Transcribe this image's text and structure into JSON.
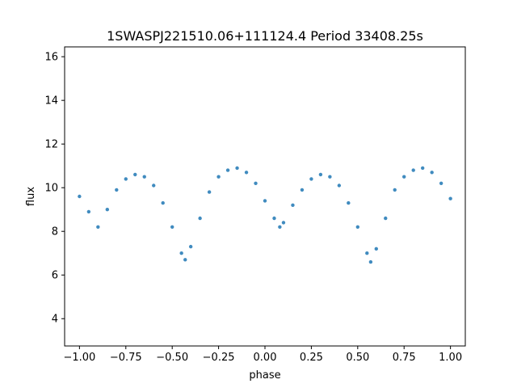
{
  "chart_data": {
    "type": "scatter",
    "title": "1SWASPJ221510.06+111124.4 Period 33408.25s",
    "xlabel": "phase",
    "ylabel": "flux",
    "xlim": [
      -1.08,
      1.08
    ],
    "ylim": [
      2.75,
      16.45
    ],
    "x_ticks": [
      -1.0,
      -0.75,
      -0.5,
      -0.25,
      0.0,
      0.25,
      0.5,
      0.75,
      1.0
    ],
    "x_tick_labels": [
      "−1.00",
      "−0.75",
      "−0.50",
      "−0.25",
      "0.00",
      "0.25",
      "0.50",
      "0.75",
      "1.00"
    ],
    "y_ticks": [
      4,
      6,
      8,
      10,
      12,
      14,
      16
    ],
    "y_tick_labels": [
      "4",
      "6",
      "8",
      "10",
      "12",
      "14",
      "16"
    ],
    "grid": false,
    "marker_color": "#1f77b4",
    "series": [
      {
        "x": [
          -1.0,
          -0.95,
          -0.9,
          -0.85,
          -0.8,
          -0.75,
          -0.7,
          -0.65,
          -0.6,
          -0.55,
          -0.5,
          -0.45,
          -0.43,
          -0.4,
          -0.35,
          -0.3,
          -0.25,
          -0.2,
          -0.15,
          -0.1,
          -0.05,
          0.0,
          0.05,
          0.08,
          0.1,
          0.15,
          0.2,
          0.25,
          0.3,
          0.35,
          0.4,
          0.45,
          0.5,
          0.55,
          0.57,
          0.6,
          0.65,
          0.7,
          0.75,
          0.8,
          0.85,
          0.9,
          0.95,
          1.0
        ],
        "y": [
          9.6,
          8.9,
          8.2,
          9.0,
          9.9,
          10.4,
          10.6,
          10.5,
          10.1,
          9.3,
          8.2,
          7.0,
          6.7,
          7.3,
          8.6,
          9.8,
          10.5,
          10.8,
          10.9,
          10.7,
          10.2,
          9.4,
          8.6,
          8.2,
          8.4,
          9.2,
          9.9,
          10.4,
          10.6,
          10.5,
          10.1,
          9.3,
          8.2,
          7.0,
          6.6,
          7.2,
          8.6,
          9.9,
          10.5,
          10.8,
          10.9,
          10.7,
          10.2,
          9.5
        ]
      }
    ]
  }
}
